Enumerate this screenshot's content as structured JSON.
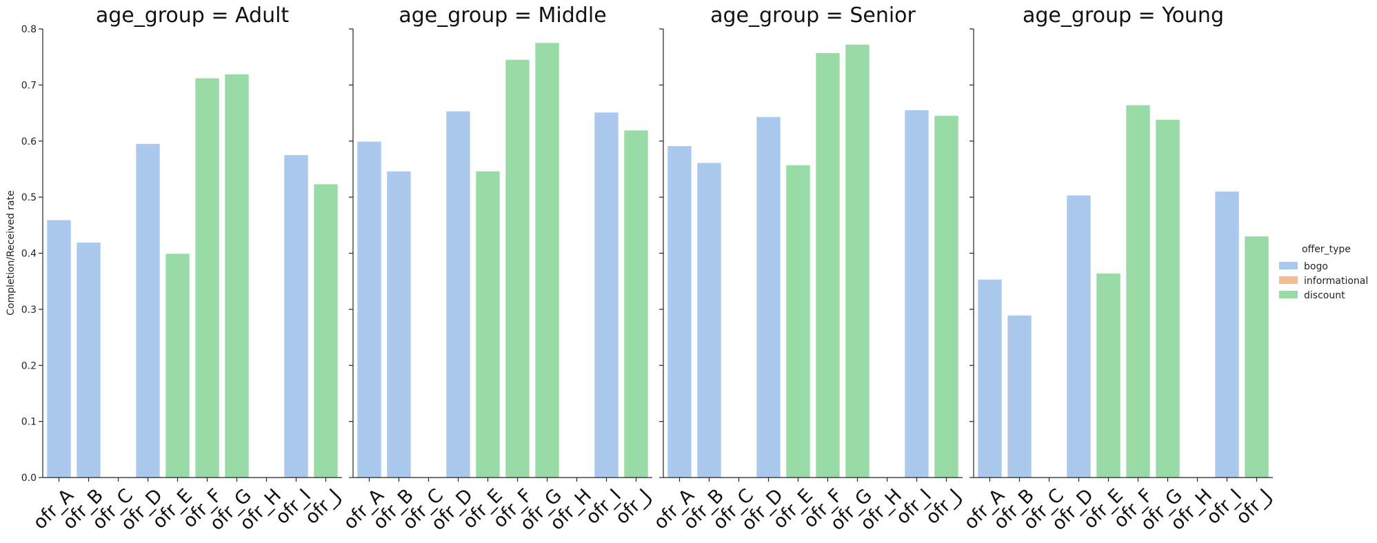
{
  "chart_data": {
    "type": "bar",
    "facet_variable": "age_group",
    "facet_title_separator": " = ",
    "ylabel": "Completion/Received rate",
    "ylim": [
      0,
      0.8
    ],
    "yticks": [
      "0.0",
      "0.1",
      "0.2",
      "0.3",
      "0.4",
      "0.5",
      "0.6",
      "0.7",
      "0.8"
    ],
    "categories": [
      "ofr_A",
      "ofr_B",
      "ofr_C",
      "ofr_D",
      "ofr_E",
      "ofr_F",
      "ofr_G",
      "ofr_H",
      "ofr_I",
      "ofr_J"
    ],
    "category_offer_type": [
      "bogo",
      "bogo",
      "informational",
      "bogo",
      "discount",
      "discount",
      "discount",
      "informational",
      "bogo",
      "discount"
    ],
    "legend": {
      "title": "offer_type",
      "placement": "right",
      "entries": [
        {
          "label": "bogo",
          "color": "#abc9ed"
        },
        {
          "label": "informational",
          "color": "#f2bc91"
        },
        {
          "label": "discount",
          "color": "#98dba7"
        }
      ]
    },
    "facets": [
      {
        "value": "Adult",
        "values": [
          0.459,
          0.419,
          0,
          0.595,
          0.399,
          0.712,
          0.719,
          0,
          0.575,
          0.523
        ]
      },
      {
        "value": "Middle",
        "values": [
          0.599,
          0.546,
          0,
          0.653,
          0.546,
          0.745,
          0.775,
          0,
          0.651,
          0.619
        ]
      },
      {
        "value": "Senior",
        "values": [
          0.591,
          0.561,
          0,
          0.643,
          0.557,
          0.757,
          0.772,
          0,
          0.655,
          0.645
        ]
      },
      {
        "value": "Young",
        "values": [
          0.353,
          0.289,
          0,
          0.503,
          0.364,
          0.664,
          0.638,
          0,
          0.51,
          0.43
        ]
      }
    ]
  }
}
